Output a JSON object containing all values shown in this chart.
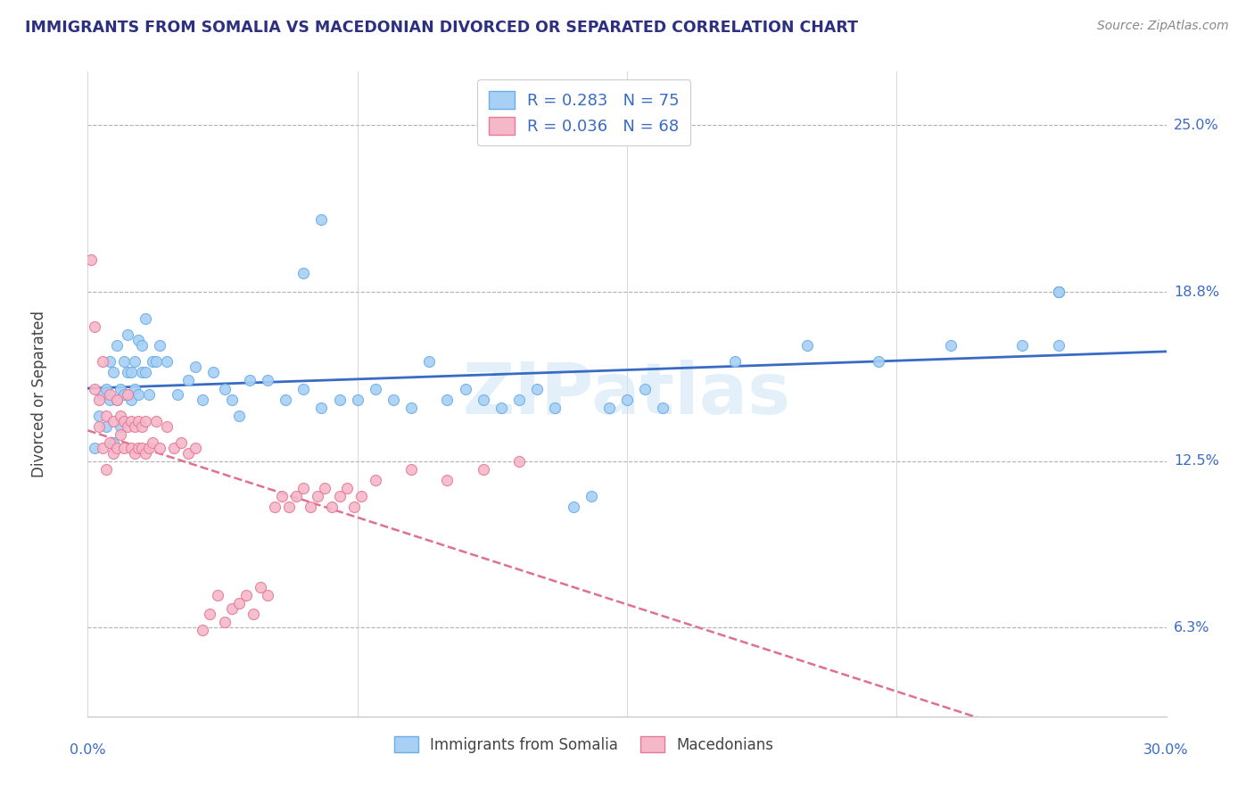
{
  "title": "IMMIGRANTS FROM SOMALIA VS MACEDONIAN DIVORCED OR SEPARATED CORRELATION CHART",
  "source": "Source: ZipAtlas.com",
  "ylabel": "Divorced or Separated",
  "ytick_labels": [
    "6.3%",
    "12.5%",
    "18.8%",
    "25.0%"
  ],
  "ytick_values": [
    0.063,
    0.125,
    0.188,
    0.25
  ],
  "xlim": [
    0.0,
    0.3
  ],
  "ylim": [
    0.03,
    0.27
  ],
  "color_somalia": "#a8d0f5",
  "color_somalia_edge": "#6aaee8",
  "color_macedonia": "#f5b8c8",
  "color_macedonia_edge": "#e87898",
  "trendline_somalia_color": "#3a6bc4",
  "trendline_macedonia_color": "#e07090",
  "watermark": "ZIPatlas",
  "somalia_x": [
    0.002,
    0.003,
    0.004,
    0.005,
    0.005,
    0.006,
    0.006,
    0.007,
    0.007,
    0.008,
    0.008,
    0.009,
    0.009,
    0.01,
    0.01,
    0.011,
    0.011,
    0.012,
    0.012,
    0.013,
    0.013,
    0.014,
    0.014,
    0.015,
    0.015,
    0.016,
    0.016,
    0.017,
    0.018,
    0.019,
    0.02,
    0.022,
    0.025,
    0.028,
    0.03,
    0.032,
    0.035,
    0.038,
    0.04,
    0.042,
    0.045,
    0.05,
    0.055,
    0.06,
    0.065,
    0.07,
    0.075,
    0.08,
    0.085,
    0.09,
    0.095,
    0.1,
    0.105,
    0.11,
    0.115,
    0.12,
    0.125,
    0.13,
    0.135,
    0.14,
    0.145,
    0.15,
    0.155,
    0.16,
    0.18,
    0.2,
    0.22,
    0.24,
    0.26,
    0.27,
    0.06,
    0.065,
    0.27,
    0.27,
    0.27
  ],
  "somalia_y": [
    0.13,
    0.142,
    0.15,
    0.138,
    0.152,
    0.148,
    0.162,
    0.132,
    0.158,
    0.148,
    0.168,
    0.152,
    0.138,
    0.162,
    0.15,
    0.158,
    0.172,
    0.148,
    0.158,
    0.152,
    0.162,
    0.15,
    0.17,
    0.158,
    0.168,
    0.158,
    0.178,
    0.15,
    0.162,
    0.162,
    0.168,
    0.162,
    0.15,
    0.155,
    0.16,
    0.148,
    0.158,
    0.152,
    0.148,
    0.142,
    0.155,
    0.155,
    0.148,
    0.152,
    0.145,
    0.148,
    0.148,
    0.152,
    0.148,
    0.145,
    0.162,
    0.148,
    0.152,
    0.148,
    0.145,
    0.148,
    0.152,
    0.145,
    0.108,
    0.112,
    0.145,
    0.148,
    0.152,
    0.145,
    0.162,
    0.168,
    0.162,
    0.168,
    0.168,
    0.168,
    0.195,
    0.215,
    0.188,
    0.188,
    0.188
  ],
  "macedonia_x": [
    0.001,
    0.002,
    0.002,
    0.003,
    0.003,
    0.004,
    0.004,
    0.005,
    0.005,
    0.006,
    0.006,
    0.007,
    0.007,
    0.008,
    0.008,
    0.009,
    0.009,
    0.01,
    0.01,
    0.011,
    0.011,
    0.012,
    0.012,
    0.013,
    0.013,
    0.014,
    0.014,
    0.015,
    0.015,
    0.016,
    0.016,
    0.017,
    0.018,
    0.019,
    0.02,
    0.022,
    0.024,
    0.026,
    0.028,
    0.03,
    0.032,
    0.034,
    0.036,
    0.038,
    0.04,
    0.042,
    0.044,
    0.046,
    0.048,
    0.05,
    0.052,
    0.054,
    0.056,
    0.058,
    0.06,
    0.062,
    0.064,
    0.066,
    0.068,
    0.07,
    0.072,
    0.074,
    0.076,
    0.08,
    0.09,
    0.1,
    0.11,
    0.12
  ],
  "macedonia_y": [
    0.2,
    0.175,
    0.152,
    0.148,
    0.138,
    0.162,
    0.13,
    0.142,
    0.122,
    0.132,
    0.15,
    0.128,
    0.14,
    0.148,
    0.13,
    0.135,
    0.142,
    0.14,
    0.13,
    0.138,
    0.15,
    0.14,
    0.13,
    0.138,
    0.128,
    0.13,
    0.14,
    0.138,
    0.13,
    0.14,
    0.128,
    0.13,
    0.132,
    0.14,
    0.13,
    0.138,
    0.13,
    0.132,
    0.128,
    0.13,
    0.062,
    0.068,
    0.075,
    0.065,
    0.07,
    0.072,
    0.075,
    0.068,
    0.078,
    0.075,
    0.108,
    0.112,
    0.108,
    0.112,
    0.115,
    0.108,
    0.112,
    0.115,
    0.108,
    0.112,
    0.115,
    0.108,
    0.112,
    0.118,
    0.122,
    0.118,
    0.122,
    0.125
  ]
}
